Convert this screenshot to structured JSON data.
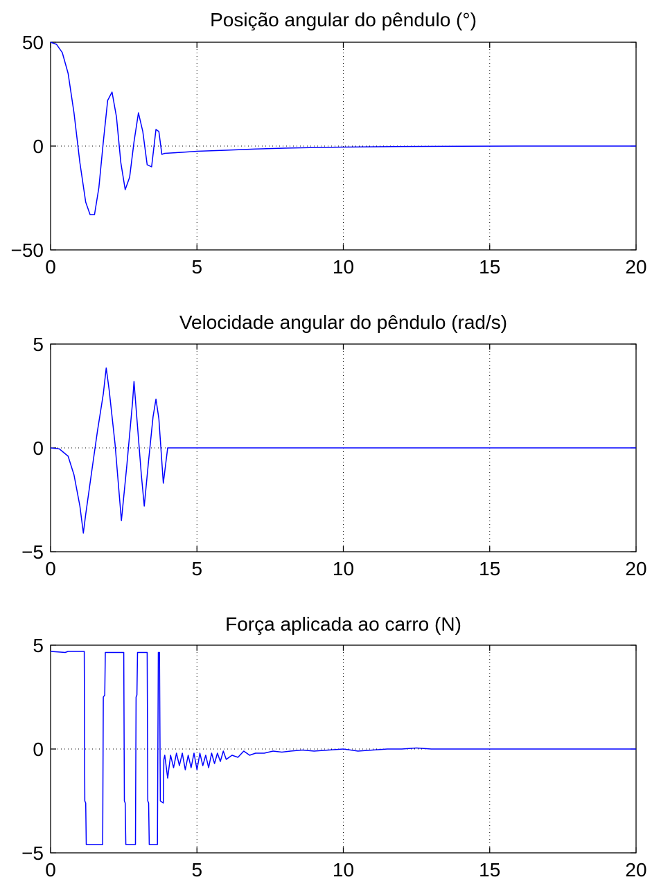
{
  "chart_data": [
    {
      "type": "line",
      "title": "Posição angular do pêndulo (°)",
      "xlim": [
        0,
        20
      ],
      "ylim": [
        -50,
        50
      ],
      "xticks": [
        0,
        5,
        10,
        15,
        20
      ],
      "yticks": [
        -50,
        0,
        50
      ],
      "xtick_labels": [
        "0",
        "5",
        "10",
        "15",
        "20"
      ],
      "ytick_labels": [
        "−50",
        "0",
        "50"
      ],
      "grid": true,
      "line_color": "#0000ff",
      "series": [
        {
          "x": [
            0,
            0.2,
            0.4,
            0.6,
            0.8,
            1.0,
            1.2,
            1.35,
            1.5,
            1.65,
            1.8,
            1.95,
            2.1,
            2.25,
            2.4,
            2.55,
            2.7,
            2.85,
            3.0,
            3.15,
            3.3,
            3.45,
            3.6,
            3.7,
            3.8,
            3.9,
            4.5,
            5,
            6,
            7,
            8,
            9,
            10,
            12,
            14,
            16,
            18,
            20
          ],
          "y": [
            50,
            49,
            45,
            35,
            16,
            -8,
            -27,
            -33,
            -33,
            -20,
            2,
            22,
            26,
            14,
            -8,
            -21,
            -15,
            2,
            16,
            7,
            -9,
            -10,
            8,
            7,
            -4,
            -3.5,
            -3,
            -2.5,
            -2,
            -1.4,
            -1,
            -0.7,
            -0.5,
            -0.2,
            -0.1,
            0,
            0,
            0
          ]
        }
      ]
    },
    {
      "type": "line",
      "title": "Velocidade angular do pêndulo (rad/s)",
      "xlim": [
        0,
        20
      ],
      "ylim": [
        -5,
        5
      ],
      "xticks": [
        0,
        5,
        10,
        15,
        20
      ],
      "yticks": [
        -5,
        0,
        5
      ],
      "xtick_labels": [
        "0",
        "5",
        "10",
        "15",
        "20"
      ],
      "ytick_labels": [
        "−5",
        "0",
        "5"
      ],
      "grid": true,
      "line_color": "#0000ff",
      "series": [
        {
          "x": [
            0,
            0.3,
            0.6,
            0.8,
            1.0,
            1.12,
            1.2,
            1.4,
            1.6,
            1.8,
            1.9,
            2.0,
            2.2,
            2.42,
            2.6,
            2.8,
            2.85,
            2.95,
            3.1,
            3.2,
            3.35,
            3.5,
            3.6,
            3.7,
            3.85,
            4.0,
            5,
            10,
            15,
            20
          ],
          "y": [
            0,
            -0.05,
            -0.4,
            -1.3,
            -2.8,
            -4.1,
            -3.2,
            -1.2,
            0.8,
            2.6,
            3.85,
            2.8,
            0.2,
            -3.5,
            -0.9,
            2.2,
            3.2,
            1.4,
            -1.3,
            -2.8,
            -0.6,
            1.5,
            2.35,
            1.4,
            -1.7,
            0,
            0,
            0,
            0,
            0
          ]
        }
      ]
    },
    {
      "type": "line",
      "title": "Força aplicada ao carro (N)",
      "xlim": [
        0,
        20
      ],
      "ylim": [
        -5,
        5
      ],
      "xticks": [
        0,
        5,
        10,
        15,
        20
      ],
      "yticks": [
        -5,
        0,
        5
      ],
      "xtick_labels": [
        "0",
        "5",
        "10",
        "15",
        "20"
      ],
      "ytick_labels": [
        "−5",
        "0",
        "5"
      ],
      "grid": true,
      "line_color": "#0000ff",
      "series": [
        {
          "x": [
            0,
            0.5,
            0.6,
            1.0,
            1.15,
            1.17,
            1.2,
            1.22,
            1.5,
            1.78,
            1.8,
            1.85,
            1.87,
            2.0,
            2.4,
            2.5,
            2.52,
            2.55,
            2.57,
            2.8,
            2.9,
            2.92,
            2.95,
            2.97,
            3.1,
            3.3,
            3.32,
            3.35,
            3.37,
            3.55,
            3.65,
            3.68,
            3.72,
            3.75,
            3.85,
            3.87,
            3.9,
            4.0,
            4.1,
            4.2,
            4.3,
            4.4,
            4.5,
            4.6,
            4.7,
            4.8,
            4.9,
            5.0,
            5.1,
            5.2,
            5.3,
            5.4,
            5.5,
            5.6,
            5.7,
            5.8,
            5.9,
            6.0,
            6.2,
            6.4,
            6.6,
            6.8,
            7.0,
            7.3,
            7.6,
            7.9,
            8.2,
            8.6,
            9.0,
            9.5,
            10.0,
            10.5,
            11.0,
            11.5,
            12.0,
            12.5,
            13.0,
            13.5,
            14.0,
            15.0,
            16.0,
            17.0,
            18.0,
            19.0,
            20.0
          ],
          "y": [
            4.7,
            4.65,
            4.7,
            4.7,
            4.7,
            -2.5,
            -2.6,
            -4.6,
            -4.6,
            -4.6,
            2.5,
            2.6,
            4.65,
            4.65,
            4.65,
            4.65,
            -2.5,
            -2.6,
            -4.6,
            -4.6,
            -4.6,
            2.5,
            2.6,
            4.65,
            4.65,
            4.65,
            -2.5,
            -2.6,
            -4.6,
            -4.6,
            -4.6,
            4.65,
            4.65,
            -2.5,
            -2.6,
            -0.5,
            -0.3,
            -1.4,
            -0.3,
            -0.9,
            -0.2,
            -0.8,
            -0.2,
            -1.0,
            -0.3,
            -0.9,
            -0.2,
            -1.0,
            -0.2,
            -0.8,
            -0.3,
            -0.9,
            -0.2,
            -0.7,
            -0.2,
            -0.6,
            -0.1,
            -0.5,
            -0.3,
            -0.4,
            -0.1,
            -0.3,
            -0.2,
            -0.2,
            -0.1,
            -0.15,
            -0.1,
            -0.05,
            -0.1,
            -0.05,
            0,
            -0.1,
            -0.05,
            0,
            0,
            0.05,
            0,
            0,
            0,
            0,
            0,
            0,
            0,
            0,
            0
          ]
        }
      ]
    }
  ]
}
